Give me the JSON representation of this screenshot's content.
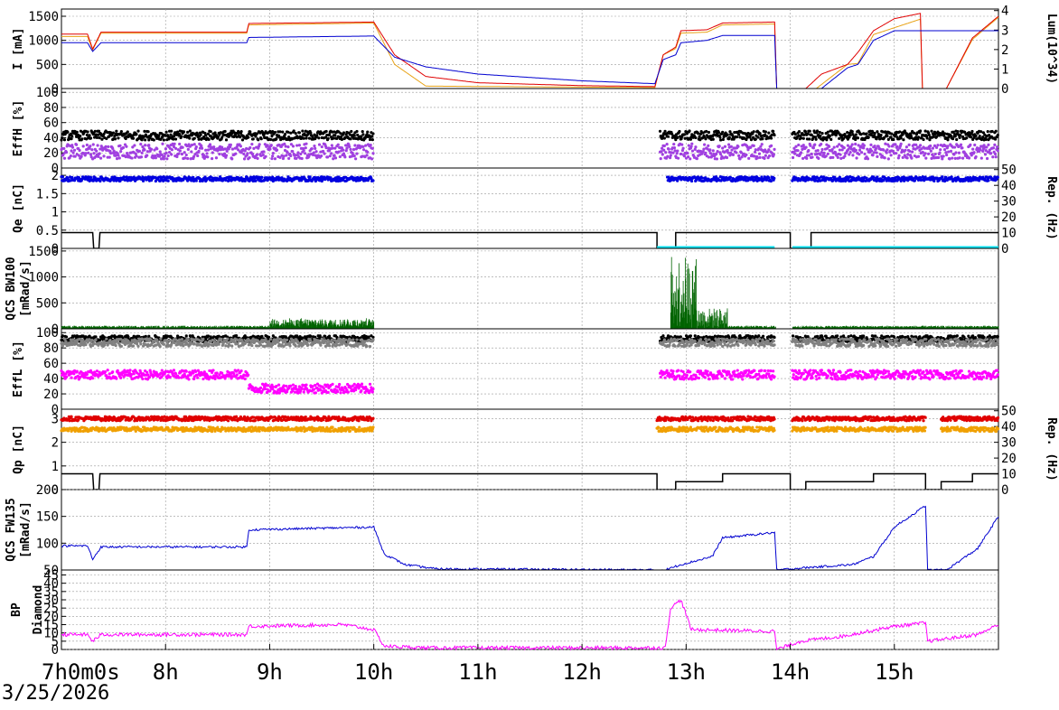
{
  "date_label": "3/25/2026",
  "time_axis": {
    "ticks": [
      {
        "value": 7,
        "label": "7h0m0s"
      },
      {
        "value": 8,
        "label": "8h"
      },
      {
        "value": 9,
        "label": "9h"
      },
      {
        "value": 10,
        "label": "10h"
      },
      {
        "value": 11,
        "label": "11h"
      },
      {
        "value": 12,
        "label": "12h"
      },
      {
        "value": 13,
        "label": "13h"
      },
      {
        "value": 14,
        "label": "14h"
      },
      {
        "value": 15,
        "label": "15h"
      }
    ],
    "range": [
      7,
      16
    ]
  },
  "chart_data": [
    {
      "type": "line",
      "id": "beam-current",
      "ylabel": "I [mA]",
      "ylim": [
        0,
        1650
      ],
      "y_ticks": [
        0,
        500,
        1000,
        1500
      ],
      "right_axis": {
        "label": "Lum(10^34)",
        "ticks": [
          0,
          1,
          2,
          3,
          4
        ]
      },
      "grid": true,
      "series": [
        {
          "color": "#e8a317",
          "points": [
            [
              7,
              1080
            ],
            [
              7.25,
              1080
            ],
            [
              7.3,
              800
            ],
            [
              7.38,
              1150
            ],
            [
              8,
              1150
            ],
            [
              8.78,
              1150
            ],
            [
              8.8,
              1320
            ],
            [
              10,
              1360
            ],
            [
              10.2,
              500
            ],
            [
              10.5,
              50
            ],
            [
              12.7,
              20
            ],
            [
              12.78,
              700
            ],
            [
              12.9,
              830
            ],
            [
              12.95,
              1150
            ],
            [
              13.2,
              1170
            ],
            [
              13.35,
              1320
            ],
            [
              13.85,
              1340
            ],
            [
              13.87,
              0
            ],
            [
              14,
              0
            ],
            [
              14.25,
              0
            ],
            [
              14.55,
              500
            ],
            [
              14.65,
              520
            ],
            [
              14.8,
              1120
            ],
            [
              15.25,
              1440
            ],
            [
              15.27,
              0
            ],
            [
              15.5,
              0
            ],
            [
              15.75,
              1020
            ],
            [
              16,
              1480
            ]
          ]
        },
        {
          "color": "#e00000",
          "points": [
            [
              7,
              1130
            ],
            [
              7.25,
              1130
            ],
            [
              7.3,
              820
            ],
            [
              7.38,
              1170
            ],
            [
              8,
              1170
            ],
            [
              8.78,
              1170
            ],
            [
              8.8,
              1350
            ],
            [
              10,
              1380
            ],
            [
              10.2,
              700
            ],
            [
              10.5,
              250
            ],
            [
              11,
              120
            ],
            [
              12,
              60
            ],
            [
              12.7,
              40
            ],
            [
              12.78,
              700
            ],
            [
              12.9,
              860
            ],
            [
              12.95,
              1200
            ],
            [
              13.2,
              1220
            ],
            [
              13.35,
              1360
            ],
            [
              13.85,
              1380
            ],
            [
              13.87,
              0
            ],
            [
              14,
              0
            ],
            [
              14.15,
              0
            ],
            [
              14.3,
              300
            ],
            [
              14.55,
              500
            ],
            [
              14.65,
              750
            ],
            [
              14.8,
              1200
            ],
            [
              15,
              1450
            ],
            [
              15.25,
              1560
            ],
            [
              15.27,
              0
            ],
            [
              15.5,
              0
            ],
            [
              15.75,
              1050
            ],
            [
              16,
              1500
            ]
          ]
        },
        {
          "color": "#0000d0",
          "points": [
            [
              7,
              950
            ],
            [
              7.25,
              950
            ],
            [
              7.3,
              770
            ],
            [
              7.38,
              950
            ],
            [
              8,
              950
            ],
            [
              8.78,
              950
            ],
            [
              8.8,
              1060
            ],
            [
              10,
              1090
            ],
            [
              10.2,
              650
            ],
            [
              10.5,
              450
            ],
            [
              11,
              300
            ],
            [
              12,
              160
            ],
            [
              12.7,
              100
            ],
            [
              12.78,
              600
            ],
            [
              12.9,
              700
            ],
            [
              12.95,
              950
            ],
            [
              13.2,
              1000
            ],
            [
              13.35,
              1100
            ],
            [
              13.85,
              1100
            ],
            [
              13.87,
              0
            ],
            [
              14,
              0
            ],
            [
              14.3,
              0
            ],
            [
              14.55,
              430
            ],
            [
              14.65,
              500
            ],
            [
              14.8,
              1000
            ],
            [
              15,
              1200
            ],
            [
              15.25,
              1200
            ],
            [
              15.5,
              1200
            ],
            [
              16,
              1200
            ]
          ]
        }
      ]
    },
    {
      "type": "scatter",
      "id": "eff-h",
      "ylabel": "EffH [%]",
      "ylim": [
        0,
        105
      ],
      "y_ticks": [
        0,
        20,
        40,
        60,
        80,
        100
      ],
      "grid": true,
      "segments": [
        [
          7,
          10
        ],
        [
          12.75,
          13.85
        ],
        [
          14.02,
          16
        ]
      ],
      "series": [
        {
          "color": "#000000",
          "level": 43,
          "spread": 6
        },
        {
          "color": "#a040e0",
          "level": 22,
          "spread": 10
        }
      ]
    },
    {
      "type": "scatter",
      "id": "qe",
      "ylabel": "Qe [nC]",
      "ylim": [
        0,
        2.2
      ],
      "y_ticks": [
        0,
        0.5,
        1,
        1.5,
        2
      ],
      "right_axis": {
        "label": "Rep. (Hz)",
        "ticks": [
          0,
          10,
          20,
          30,
          40,
          50
        ]
      },
      "grid": true,
      "charge_level": 1.9,
      "rep_rate_hz": 10
    },
    {
      "type": "area",
      "id": "qcs-bw100",
      "ylabel": "QCS BW100 [mRad/s]",
      "ylim": [
        0,
        1550
      ],
      "y_ticks": [
        0,
        500,
        1000,
        1500
      ],
      "grid": true
    },
    {
      "type": "scatter",
      "id": "eff-l",
      "ylabel": "EffL [%]",
      "ylim": [
        0,
        105
      ],
      "y_ticks": [
        0,
        20,
        40,
        60,
        80,
        100
      ],
      "grid": true,
      "series": [
        {
          "color": "#000000",
          "level": 92,
          "spread": 4
        },
        {
          "color": "#808080",
          "level": 87,
          "spread": 5
        },
        {
          "color": "#ff00ff",
          "level": 45,
          "spread": 6
        }
      ]
    },
    {
      "type": "scatter",
      "id": "qp",
      "ylabel": "Qp [nC]",
      "ylim": [
        0,
        3.4
      ],
      "y_ticks": [
        0,
        1,
        2,
        3
      ],
      "right_axis": {
        "label": "Rep. (Hz)",
        "ticks": [
          0,
          10,
          20,
          30,
          40,
          50
        ]
      },
      "grid": true,
      "series": [
        {
          "color": "#e00000",
          "level": 3.0
        },
        {
          "color": "#f0a000",
          "level": 2.55
        }
      ]
    },
    {
      "type": "line",
      "id": "qcs-fw135",
      "ylabel": "QCS FW135 [mRad/s]",
      "ylim": [
        50,
        200
      ],
      "y_ticks": [
        50,
        100,
        150,
        200
      ],
      "grid": true,
      "series": [
        {
          "color": "#0000d0",
          "points": [
            [
              7,
              95
            ],
            [
              7.25,
              95
            ],
            [
              7.3,
              70
            ],
            [
              7.38,
              93
            ],
            [
              8,
              93
            ],
            [
              8.78,
              93
            ],
            [
              8.8,
              125
            ],
            [
              10,
              130
            ],
            [
              10.1,
              80
            ],
            [
              10.3,
              60
            ],
            [
              10.6,
              52
            ],
            [
              12.8,
              50
            ],
            [
              12.95,
              60
            ],
            [
              13.25,
              75
            ],
            [
              13.35,
              110
            ],
            [
              13.85,
              120
            ],
            [
              13.87,
              50
            ],
            [
              14.2,
              55
            ],
            [
              14.6,
              60
            ],
            [
              14.8,
              75
            ],
            [
              15,
              130
            ],
            [
              15.3,
              170
            ],
            [
              15.32,
              50
            ],
            [
              15.5,
              50
            ],
            [
              15.8,
              90
            ],
            [
              16,
              150
            ]
          ]
        }
      ]
    },
    {
      "type": "line",
      "id": "bp-diamond",
      "ylabel": "BP Diamond",
      "ylim": [
        0,
        48
      ],
      "y_ticks": [
        0,
        5,
        10,
        15,
        20,
        25,
        30,
        35,
        40,
        45
      ],
      "grid": true,
      "series": [
        {
          "color": "#ff00ff",
          "points": [
            [
              7,
              9
            ],
            [
              7.25,
              9
            ],
            [
              7.3,
              5
            ],
            [
              7.38,
              9
            ],
            [
              8,
              9
            ],
            [
              8.78,
              9
            ],
            [
              8.8,
              14
            ],
            [
              9.7,
              15
            ],
            [
              10,
              12
            ],
            [
              10.1,
              2
            ],
            [
              10.5,
              1
            ],
            [
              12.8,
              1
            ],
            [
              12.85,
              25
            ],
            [
              12.95,
              30
            ],
            [
              13.05,
              12
            ],
            [
              13.85,
              11
            ],
            [
              13.87,
              0
            ],
            [
              14.1,
              5
            ],
            [
              14.5,
              8
            ],
            [
              15,
              14
            ],
            [
              15.3,
              16
            ],
            [
              15.32,
              5
            ],
            [
              15.8,
              9
            ],
            [
              16,
              15
            ]
          ]
        }
      ]
    }
  ]
}
